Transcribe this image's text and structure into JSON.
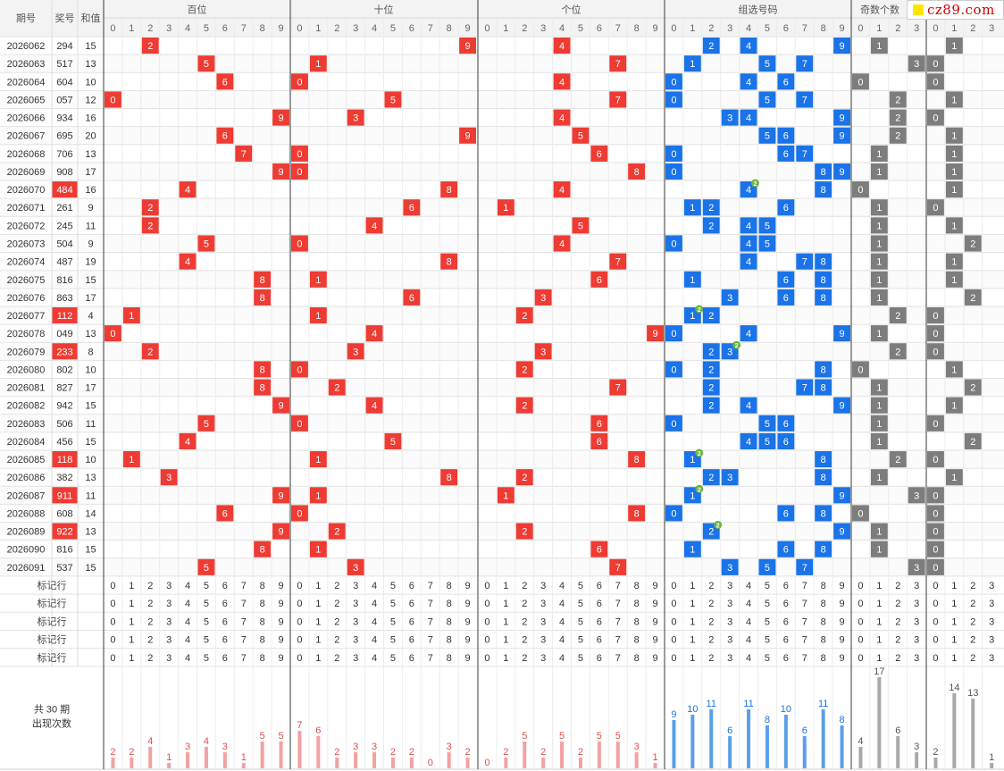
{
  "site_logo": "cz89.com",
  "headers": {
    "period": "期号",
    "prize": "奖号",
    "sum": "和值",
    "hundreds": "百位",
    "tens": "十位",
    "units": "个位",
    "group": "组选号码",
    "odd_count": "奇数个数"
  },
  "digit_labels": [
    "0",
    "1",
    "2",
    "3",
    "4",
    "5",
    "6",
    "7",
    "8",
    "9"
  ],
  "count_labels": [
    "0",
    "1",
    "2",
    "3"
  ],
  "draws": [
    {
      "period": "2026062",
      "prize": "294",
      "sum": "15"
    },
    {
      "period": "2026063",
      "prize": "517",
      "sum": "13"
    },
    {
      "period": "2026064",
      "prize": "604",
      "sum": "10"
    },
    {
      "period": "2026065",
      "prize": "057",
      "sum": "12"
    },
    {
      "period": "2026066",
      "prize": "934",
      "sum": "16"
    },
    {
      "period": "2026067",
      "prize": "695",
      "sum": "20"
    },
    {
      "period": "2026068",
      "prize": "706",
      "sum": "13"
    },
    {
      "period": "2026069",
      "prize": "908",
      "sum": "17"
    },
    {
      "period": "2026070",
      "prize": "484",
      "sum": "16"
    },
    {
      "period": "2026071",
      "prize": "261",
      "sum": "9"
    },
    {
      "period": "2026072",
      "prize": "245",
      "sum": "11"
    },
    {
      "period": "2026073",
      "prize": "504",
      "sum": "9"
    },
    {
      "period": "2026074",
      "prize": "487",
      "sum": "19"
    },
    {
      "period": "2026075",
      "prize": "816",
      "sum": "15"
    },
    {
      "period": "2026076",
      "prize": "863",
      "sum": "17"
    },
    {
      "period": "2026077",
      "prize": "112",
      "sum": "4"
    },
    {
      "period": "2026078",
      "prize": "049",
      "sum": "13"
    },
    {
      "period": "2026079",
      "prize": "233",
      "sum": "8"
    },
    {
      "period": "2026080",
      "prize": "802",
      "sum": "10"
    },
    {
      "period": "2026081",
      "prize": "827",
      "sum": "17"
    },
    {
      "period": "2026082",
      "prize": "942",
      "sum": "15"
    },
    {
      "period": "2026083",
      "prize": "506",
      "sum": "11"
    },
    {
      "period": "2026084",
      "prize": "456",
      "sum": "15"
    },
    {
      "period": "2026085",
      "prize": "118",
      "sum": "10"
    },
    {
      "period": "2026086",
      "prize": "382",
      "sum": "13"
    },
    {
      "period": "2026087",
      "prize": "911",
      "sum": "11"
    },
    {
      "period": "2026088",
      "prize": "608",
      "sum": "14"
    },
    {
      "period": "2026089",
      "prize": "922",
      "sum": "13"
    },
    {
      "period": "2026090",
      "prize": "816",
      "sum": "15"
    },
    {
      "period": "2026091",
      "prize": "537",
      "sum": "15"
    }
  ],
  "marker_rows": {
    "label": "标记行",
    "count": 5
  },
  "footer": {
    "line1": "共 30 期",
    "line2": "出现次数"
  },
  "colors": {
    "hundreds": "#ee3b33",
    "tens": "#ee3b33",
    "units": "#ee3b33",
    "group": "#1a73e8",
    "odd_count": "#7d7d7d",
    "repeat_badge": "#6cb33f",
    "bar_red": "#f4a1a1",
    "bar_blue": "#5b9ee8",
    "bar_gray": "#a9a9a9"
  },
  "chart_data": [
    {
      "type": "bar",
      "title": "百位",
      "categories": [
        "0",
        "1",
        "2",
        "3",
        "4",
        "5",
        "6",
        "7",
        "8",
        "9"
      ],
      "values": [
        2,
        2,
        4,
        1,
        3,
        4,
        3,
        1,
        5,
        5
      ]
    },
    {
      "type": "bar",
      "title": "十位",
      "categories": [
        "0",
        "1",
        "2",
        "3",
        "4",
        "5",
        "6",
        "7",
        "8",
        "9"
      ],
      "values": [
        7,
        6,
        2,
        3,
        3,
        2,
        2,
        0,
        3,
        2
      ]
    },
    {
      "type": "bar",
      "title": "个位",
      "categories": [
        "0",
        "1",
        "2",
        "3",
        "4",
        "5",
        "6",
        "7",
        "8",
        "9"
      ],
      "values": [
        0,
        2,
        5,
        2,
        5,
        2,
        5,
        5,
        3,
        1
      ]
    },
    {
      "type": "bar",
      "title": "组选号码",
      "categories": [
        "0",
        "1",
        "2",
        "3",
        "4",
        "5",
        "6",
        "7",
        "8",
        "9"
      ],
      "values": [
        9,
        10,
        11,
        6,
        11,
        8,
        10,
        6,
        11,
        8
      ]
    },
    {
      "type": "bar",
      "title": "奇数个数",
      "categories": [
        "0",
        "1",
        "2",
        "3"
      ],
      "values": [
        4,
        17,
        6,
        3
      ]
    },
    {
      "type": "bar",
      "title": "",
      "categories": [
        "0",
        "1",
        "2",
        "3"
      ],
      "values": [
        2,
        14,
        13,
        1
      ]
    }
  ]
}
